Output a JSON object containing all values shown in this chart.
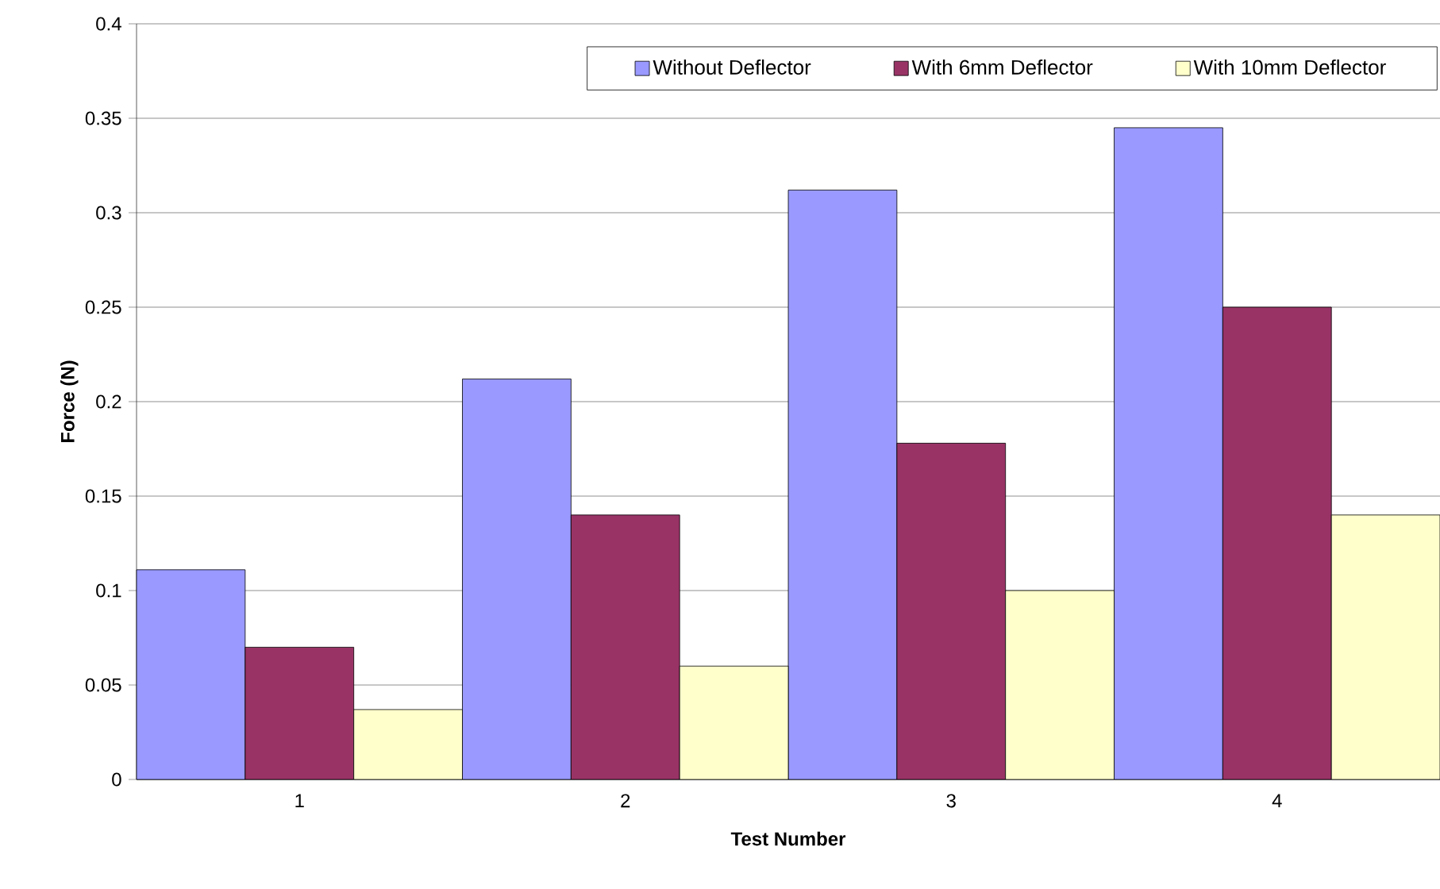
{
  "chart_data": {
    "type": "bar",
    "xlabel": "Test Number",
    "ylabel": "Force (N)",
    "categories": [
      "1",
      "2",
      "3",
      "4"
    ],
    "series": [
      {
        "name": "Without Deflector",
        "color": "#9999ff",
        "values": [
          0.111,
          0.212,
          0.312,
          0.345
        ]
      },
      {
        "name": "With 6mm Deflector",
        "color": "#993366",
        "values": [
          0.07,
          0.14,
          0.178,
          0.25
        ]
      },
      {
        "name": "With 10mm Deflector",
        "color": "#ffffcc",
        "values": [
          0.037,
          0.06,
          0.1,
          0.14
        ]
      }
    ],
    "ylim": [
      0,
      0.4
    ],
    "yticks": [
      0,
      0.05,
      0.1,
      0.15,
      0.2,
      0.25,
      0.3,
      0.35,
      0.4
    ],
    "grid": "y",
    "legend": "top"
  }
}
